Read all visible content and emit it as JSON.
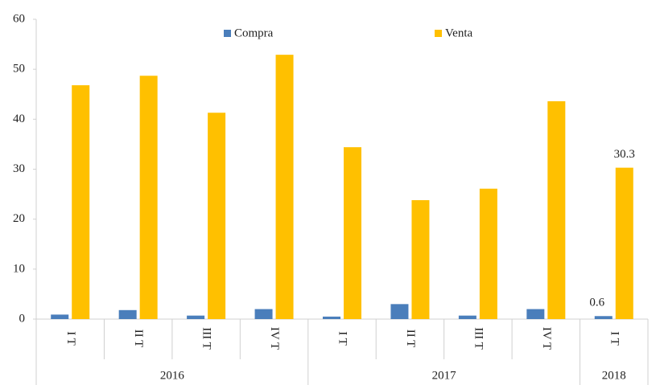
{
  "chart_data": {
    "type": "bar",
    "groups": [
      {
        "label": "2016",
        "categories": [
          "I T",
          "II T",
          "III T",
          "IV T"
        ]
      },
      {
        "label": "2017",
        "categories": [
          "I T",
          "II T",
          "III T",
          "IV T"
        ]
      },
      {
        "label": "2018",
        "categories": [
          "I T"
        ]
      }
    ],
    "series": [
      {
        "name": "Compra",
        "color": "#4a7ebb",
        "values": [
          0.9,
          1.8,
          0.7,
          2.0,
          0.5,
          3.0,
          0.7,
          2.0,
          0.6
        ],
        "value_labels": [
          null,
          null,
          null,
          null,
          null,
          null,
          null,
          null,
          "0.6"
        ]
      },
      {
        "name": "Venta",
        "color": "#ffc000",
        "values": [
          46.8,
          48.7,
          41.3,
          52.9,
          34.4,
          23.8,
          26.1,
          43.6,
          30.3
        ],
        "value_labels": [
          null,
          null,
          null,
          null,
          null,
          null,
          null,
          null,
          "30.3"
        ]
      }
    ],
    "ylim": [
      0,
      60
    ],
    "yticks": [
      0,
      10,
      20,
      30,
      40,
      50,
      60
    ],
    "grid": false,
    "legend": "top"
  }
}
